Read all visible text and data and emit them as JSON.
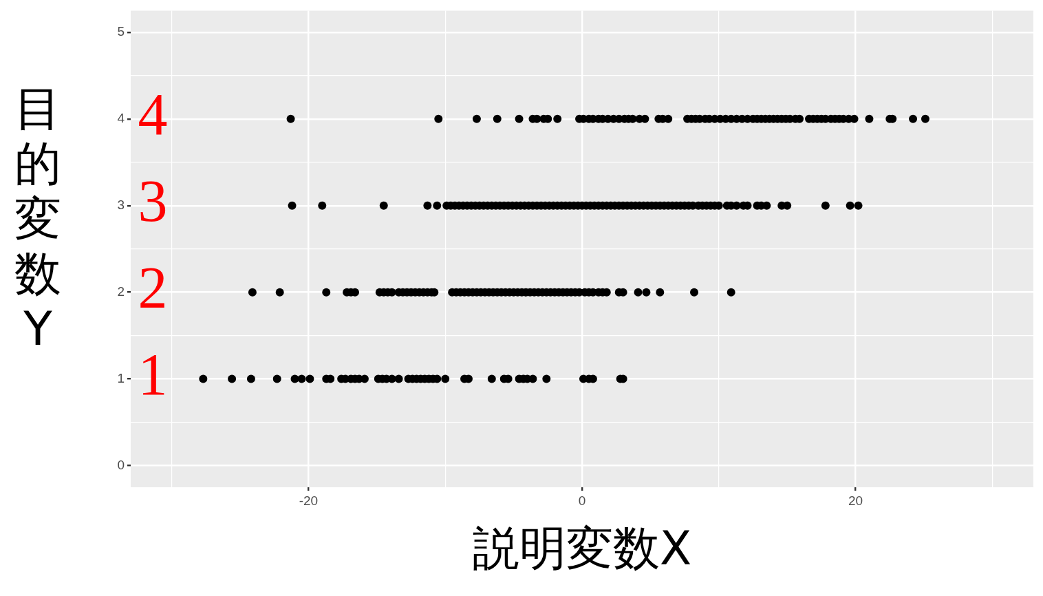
{
  "chart_data": {
    "type": "scatter",
    "xlabel": "説明変数X",
    "ylabel": "目的変数Y",
    "xlim": [
      -33,
      33
    ],
    "ylim": [
      -0.25,
      5.25
    ],
    "xticks": [
      {
        "value": -30,
        "label": null
      },
      -20,
      {
        "value": -10,
        "label": null
      },
      0,
      {
        "value": 10,
        "label": null
      },
      20,
      {
        "value": 30,
        "label": null
      }
    ],
    "yticks": [
      0,
      {
        "value": 0.5,
        "label": null
      },
      1,
      {
        "value": 1.5,
        "label": null
      },
      2,
      {
        "value": 2.5,
        "label": null
      },
      3,
      {
        "value": 3.5,
        "label": null
      },
      4,
      {
        "value": 4.5,
        "label": null
      },
      5
    ],
    "grid": true,
    "legend": false,
    "marker": "circle",
    "annotations": [
      "1",
      "2",
      "3",
      "4"
    ],
    "series": [
      {
        "color": "#000000",
        "x": [
          -21.3,
          -10.5,
          -7.7,
          -6.2,
          -4.6,
          -3.6,
          -3.3,
          -2.8,
          -2.5,
          -1.8,
          -0.2,
          0.1,
          0.5,
          0.8,
          1.2,
          1.5,
          1.9,
          2.3,
          2.7,
          3.1,
          3.4,
          3.7,
          4.2,
          4.6,
          5.6,
          5.9,
          6.3,
          7.7,
          8.0,
          8.3,
          8.6,
          9.0,
          9.3,
          9.7,
          10.1,
          10.5,
          10.9,
          11.3,
          11.7,
          12.1,
          12.5,
          12.8,
          13.1,
          13.4,
          13.7,
          14.0,
          14.3,
          14.6,
          14.9,
          15.2,
          15.6,
          15.9,
          16.6,
          16.9,
          17.2,
          17.5,
          17.8,
          18.2,
          18.5,
          18.8,
          19.1,
          19.5,
          19.9,
          21.0,
          22.5,
          22.7,
          24.2,
          25.1
        ],
        "values": [
          4,
          4,
          4,
          4,
          4,
          4,
          4,
          4,
          4,
          4,
          4,
          4,
          4,
          4,
          4,
          4,
          4,
          4,
          4,
          4,
          4,
          4,
          4,
          4,
          4,
          4,
          4,
          4,
          4,
          4,
          4,
          4,
          4,
          4,
          4,
          4,
          4,
          4,
          4,
          4,
          4,
          4,
          4,
          4,
          4,
          4,
          4,
          4,
          4,
          4,
          4,
          4,
          4,
          4,
          4,
          4,
          4,
          4,
          4,
          4,
          4,
          4,
          4,
          4,
          4,
          4,
          4,
          4
        ]
      },
      {
        "color": "#000000",
        "x": [
          -21.2,
          -19.0,
          -14.5,
          -11.3,
          -10.6,
          -9.9,
          -9.6,
          -9.3,
          -9.0,
          -8.7,
          -8.4,
          -8.1,
          -7.8,
          -7.5,
          -7.2,
          -6.9,
          -6.6,
          -6.3,
          -6.0,
          -5.7,
          -5.4,
          -5.1,
          -4.8,
          -4.5,
          -4.2,
          -3.9,
          -3.6,
          -3.3,
          -3.0,
          -2.7,
          -2.4,
          -2.1,
          -1.8,
          -1.5,
          -1.2,
          -0.9,
          -0.6,
          -0.3,
          0.0,
          0.3,
          0.6,
          0.9,
          1.2,
          1.5,
          1.8,
          2.1,
          2.4,
          2.7,
          3.0,
          3.3,
          3.6,
          3.9,
          4.2,
          4.5,
          4.8,
          5.1,
          5.4,
          5.7,
          6.0,
          6.3,
          6.6,
          6.9,
          7.2,
          7.5,
          7.8,
          8.1,
          8.5,
          8.8,
          9.1,
          9.4,
          9.7,
          10.0,
          10.6,
          10.9,
          11.3,
          11.8,
          12.1,
          12.8,
          13.1,
          13.5,
          14.6,
          15.0,
          17.8,
          19.6,
          20.2
        ],
        "values": [
          3,
          3,
          3,
          3,
          3,
          3,
          3,
          3,
          3,
          3,
          3,
          3,
          3,
          3,
          3,
          3,
          3,
          3,
          3,
          3,
          3,
          3,
          3,
          3,
          3,
          3,
          3,
          3,
          3,
          3,
          3,
          3,
          3,
          3,
          3,
          3,
          3,
          3,
          3,
          3,
          3,
          3,
          3,
          3,
          3,
          3,
          3,
          3,
          3,
          3,
          3,
          3,
          3,
          3,
          3,
          3,
          3,
          3,
          3,
          3,
          3,
          3,
          3,
          3,
          3,
          3,
          3,
          3,
          3,
          3,
          3,
          3,
          3,
          3,
          3,
          3,
          3,
          3,
          3,
          3,
          3,
          3,
          3,
          3,
          3
        ]
      },
      {
        "color": "#000000",
        "x": [
          -24.1,
          -22.1,
          -18.7,
          -17.2,
          -16.9,
          -16.6,
          -14.8,
          -14.5,
          -14.2,
          -13.9,
          -13.4,
          -13.1,
          -12.8,
          -12.5,
          -12.2,
          -11.9,
          -11.6,
          -11.3,
          -11.0,
          -10.8,
          -9.5,
          -9.2,
          -8.9,
          -8.6,
          -8.3,
          -8.0,
          -7.7,
          -7.4,
          -7.1,
          -6.8,
          -6.5,
          -6.2,
          -5.9,
          -5.6,
          -5.3,
          -5.0,
          -4.7,
          -4.4,
          -4.1,
          -3.8,
          -3.5,
          -3.2,
          -2.9,
          -2.6,
          -2.3,
          -2.0,
          -1.7,
          -1.4,
          -1.1,
          -0.8,
          -0.5,
          -0.2,
          0.2,
          0.5,
          0.8,
          1.2,
          1.5,
          1.8,
          2.7,
          3.0,
          4.1,
          4.7,
          5.7,
          8.2,
          10.9
        ],
        "values": [
          2,
          2,
          2,
          2,
          2,
          2,
          2,
          2,
          2,
          2,
          2,
          2,
          2,
          2,
          2,
          2,
          2,
          2,
          2,
          2,
          2,
          2,
          2,
          2,
          2,
          2,
          2,
          2,
          2,
          2,
          2,
          2,
          2,
          2,
          2,
          2,
          2,
          2,
          2,
          2,
          2,
          2,
          2,
          2,
          2,
          2,
          2,
          2,
          2,
          2,
          2,
          2,
          2,
          2,
          2,
          2,
          2,
          2,
          2,
          2,
          2,
          2,
          2,
          2,
          2
        ]
      },
      {
        "color": "#000000",
        "x": [
          -27.7,
          -25.6,
          -24.2,
          -22.3,
          -21.0,
          -20.5,
          -19.9,
          -18.7,
          -18.4,
          -17.6,
          -17.3,
          -16.9,
          -16.6,
          -16.3,
          -15.9,
          -14.9,
          -14.6,
          -14.3,
          -13.9,
          -13.4,
          -12.7,
          -12.4,
          -12.1,
          -11.8,
          -11.5,
          -11.2,
          -10.9,
          -10.6,
          -10.0,
          -8.6,
          -8.3,
          -6.6,
          -5.7,
          -5.4,
          -4.6,
          -4.3,
          -4.0,
          -3.6,
          -2.6,
          0.1,
          0.5,
          0.8,
          2.8,
          3.0
        ],
        "values": [
          1,
          1,
          1,
          1,
          1,
          1,
          1,
          1,
          1,
          1,
          1,
          1,
          1,
          1,
          1,
          1,
          1,
          1,
          1,
          1,
          1,
          1,
          1,
          1,
          1,
          1,
          1,
          1,
          1,
          1,
          1,
          1,
          1,
          1,
          1,
          1,
          1,
          1,
          1,
          1,
          1,
          1,
          1,
          1
        ]
      }
    ]
  }
}
